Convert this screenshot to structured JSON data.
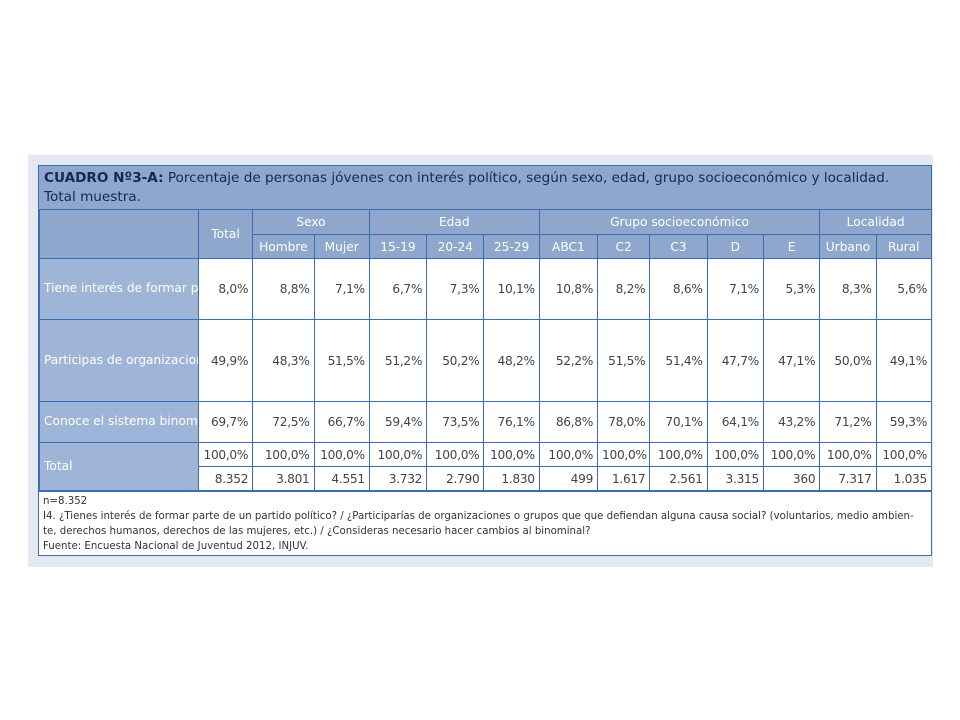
{
  "title": {
    "label": "CUADRO Nº3-A:",
    "text": " Porcentaje de personas jóvenes con interés político, según sexo, edad, grupo socioeconómico y localidad. Total muestra."
  },
  "header": {
    "total": "Total",
    "groups": [
      {
        "label": "Sexo",
        "cols": [
          "Hombre",
          "Mujer"
        ]
      },
      {
        "label": "Edad",
        "cols": [
          "15-19",
          "20-24",
          "25-29"
        ]
      },
      {
        "label": "Grupo socioeconómico",
        "cols": [
          "ABC1",
          "C2",
          "C3",
          "D",
          "E"
        ]
      },
      {
        "label": "Localidad",
        "cols": [
          "Urbano",
          "Rural"
        ]
      }
    ]
  },
  "rows": [
    {
      "label": "Tiene interés de formar parte de un partido político",
      "values": [
        "8,0%",
        "8,8%",
        "7,1%",
        "6,7%",
        "7,3%",
        "10,1%",
        "10,8%",
        "8,2%",
        "8,6%",
        "7,1%",
        "5,3%",
        "8,3%",
        "5,6%"
      ]
    },
    {
      "label": "Participas de organizaciones o grupos que defiendan alguna causa social",
      "values": [
        "49,9%",
        "48,3%",
        "51,5%",
        "51,2%",
        "50,2%",
        "48,2%",
        "52,2%",
        "51,5%",
        "51,4%",
        "47,7%",
        "47,1%",
        "50,0%",
        "49,1%"
      ]
    },
    {
      "label": "Conoce el sistema binominal",
      "values": [
        "69,7%",
        "72,5%",
        "66,7%",
        "59,4%",
        "73,5%",
        "76,1%",
        "86,8%",
        "78,0%",
        "70,1%",
        "64,1%",
        "43,2%",
        "71,2%",
        "59,3%"
      ]
    }
  ],
  "total_row": {
    "label": "Total",
    "percent": [
      "100,0%",
      "100,0%",
      "100,0%",
      "100,0%",
      "100,0%",
      "100,0%",
      "100,0%",
      "100,0%",
      "100,0%",
      "100,0%",
      "100,0%",
      "100,0%",
      "100,0%"
    ],
    "counts": [
      "8.352",
      "3.801",
      "4.551",
      "3.732",
      "2.790",
      "1.830",
      "499",
      "1.617",
      "2.561",
      "3.315",
      "360",
      "7.317",
      "1.035"
    ]
  },
  "notes": [
    "n=8.352",
    "I4. ¿Tienes interés de formar parte de un partido político? / ¿Participarías de organizaciones o grupos que que defiendan alguna causa social? (voluntarios, medio ambien-",
    "te, derechos humanos, derechos de las mujeres, etc.) / ¿Consideras necesario hacer cambios al binominal?",
    "Fuente: Encuesta Nacional de Juventud 2012, INJUV."
  ]
}
